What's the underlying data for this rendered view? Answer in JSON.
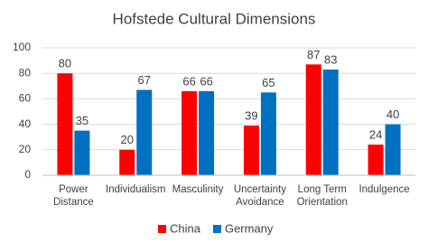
{
  "chart_data": {
    "type": "bar",
    "title": "Hofstede Cultural Dimensions",
    "categories": [
      "Power Distance",
      "Individualism",
      "Masculinity",
      "Uncertainty Avoidance",
      "Long Term Orientation",
      "Indulgence"
    ],
    "series": [
      {
        "name": "China",
        "color": "#ff0000",
        "values": [
          80,
          20,
          66,
          39,
          87,
          24
        ]
      },
      {
        "name": "Germany",
        "color": "#0070c0",
        "values": [
          35,
          67,
          66,
          65,
          83,
          40
        ]
      }
    ],
    "ylim": [
      0,
      100
    ],
    "yticks": [
      0,
      20,
      40,
      60,
      80,
      100
    ],
    "grid": true,
    "legend": "bottom"
  }
}
